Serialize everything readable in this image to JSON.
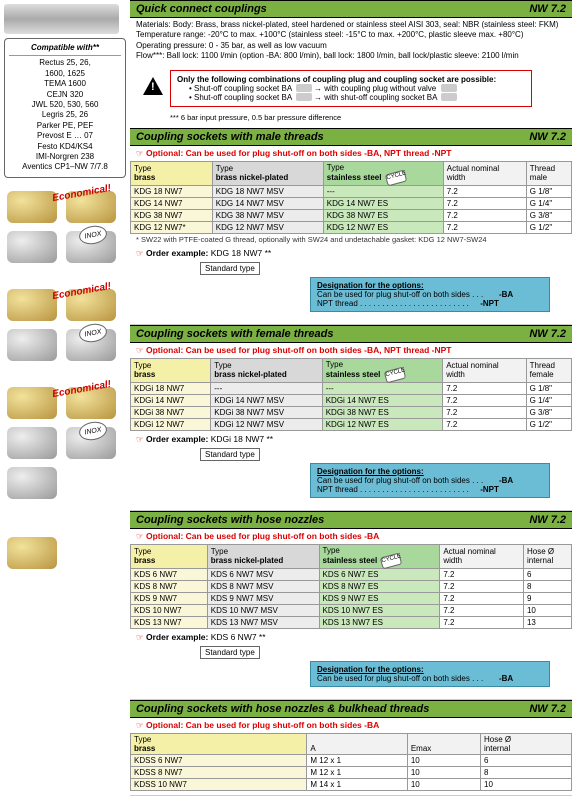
{
  "compat": {
    "title": "Compatible with**",
    "lines": [
      "Rectus 25, 26,",
      "1600, 1625",
      "TEMA 1600",
      "CEJN 320",
      "JWL 520, 530, 560",
      "Legris 25, 26",
      "Parker PE, PEF",
      "Prevost E … 07",
      "Festo KD4/KS4",
      "IMI-Norgren 238",
      "Aventics CP1–NW 7/7.8"
    ]
  },
  "header": {
    "title": "Quick connect couplings",
    "code": "NW 7.2"
  },
  "specs": {
    "l1": "Materials: Body: Brass, brass nickel-plated, steel hardened or stainless steel AISI 303, seal: NBR (stainless steel: FKM)",
    "l2": "Temperature range: -20°C to max. +100°C (stainless steel: -15°C to max. +200°C, plastic sleeve max. +80°C)",
    "l3": "Operating pressure: 0 - 35 bar, as well as low vacuum",
    "l4": "Flow***: Ball lock: 1100 l/min (option -BA: 800 l/min), ball lock: 1800 l/min, ball lock/plastic sleeve: 2100 l/min"
  },
  "warn": {
    "title": "Only the following combinations of coupling plug and coupling socket are possible:",
    "r1a": "• Shut-off coupling socket BA",
    "r1b": "with coupling plug without valve",
    "r2a": "• Shut-off coupling socket BA",
    "r2b": "with shut-off coupling socket BA"
  },
  "foot1": "*** 6 bar input pressure, 0.5 bar pressure difference",
  "labels": {
    "economical": "Economical!",
    "inox": "INOX",
    "cycle": "CYCLE",
    "stdtype": "Standard type",
    "order": "Order example:",
    "desig_title": "Designation for the options:",
    "desig_ba": "Can be used for plug shut-off on both sides . . .",
    "desig_npt": "NPT thread  . . . . . . . . . . . . . . . . . . . . . . . . .",
    "ba": "-BA",
    "npt": "-NPT",
    "type": "Type",
    "brass": "brass",
    "bnp": "brass nickel-plated",
    "ss": "stainless steel",
    "anw": "Actual nominal",
    "anw2": "width",
    "thread": "Thread",
    "male": "male",
    "female": "female",
    "hose": "Hose Ø",
    "internal": "internal",
    "A": "A",
    "Emax": "Emax"
  },
  "sec1": {
    "title": "Coupling sockets with male threads",
    "code": "NW 7.2",
    "optional": "Optional: Can be used for plug shut-off on both sides -BA, NPT thread -NPT",
    "rows": [
      [
        "KDG 18 NW7",
        "KDG 18 NW7 MSV",
        "---",
        "7.2",
        "G 1/8\""
      ],
      [
        "KDG 14 NW7",
        "KDG 14 NW7 MSV",
        "KDG 14 NW7 ES",
        "7.2",
        "G 1/4\""
      ],
      [
        "KDG 38 NW7",
        "KDG 38 NW7 MSV",
        "KDG 38 NW7 ES",
        "7.2",
        "G 3/8\""
      ],
      [
        "KDG 12 NW7*",
        "KDG 12 NW7 MSV",
        "KDG 12 NW7 ES",
        "7.2",
        "G 1/2\""
      ]
    ],
    "note": "* SW22 with PTFE-coated G thread, optionally with SW24 and undetachable gasket: KDG 12 NW7-SW24",
    "order": "KDG 18 NW7  **"
  },
  "sec2": {
    "title": "Coupling sockets with female threads",
    "code": "NW 7.2",
    "optional": "Optional: Can be used for plug shut-off on both sides -BA, NPT thread -NPT",
    "rows": [
      [
        "KDGi 18 NW7",
        "---",
        "---",
        "7.2",
        "G 1/8\""
      ],
      [
        "KDGi 14 NW7",
        "KDGi 14 NW7 MSV",
        "KDGi 14 NW7 ES",
        "7.2",
        "G 1/4\""
      ],
      [
        "KDGi 38 NW7",
        "KDGi 38 NW7 MSV",
        "KDGi 38 NW7 ES",
        "7.2",
        "G 3/8\""
      ],
      [
        "KDGi 12 NW7",
        "KDGi 12 NW7 MSV",
        "KDGi 12 NW7 ES",
        "7.2",
        "G 1/2\""
      ]
    ],
    "order": "KDGi 18 NW7  **"
  },
  "sec3": {
    "title": "Coupling sockets with hose nozzles",
    "code": "NW 7.2",
    "optional": "Optional: Can be used for plug shut-off on both sides -BA",
    "rows": [
      [
        "KDS 6 NW7",
        "KDS 6 NW7 MSV",
        "KDS 6 NW7 ES",
        "7.2",
        "6"
      ],
      [
        "KDS 8 NW7",
        "KDS 8 NW7 MSV",
        "KDS 8 NW7 ES",
        "7.2",
        "8"
      ],
      [
        "KDS 9 NW7",
        "KDS 9 NW7 MSV",
        "KDS 9 NW7 ES",
        "7.2",
        "9"
      ],
      [
        "KDS 10 NW7",
        "KDS 10 NW7 MSV",
        "KDS 10 NW7 ES",
        "7.2",
        "10"
      ],
      [
        "KDS 13 NW7",
        "KDS 13 NW7 MSV",
        "KDS 13 NW7 ES",
        "7.2",
        "13"
      ]
    ],
    "order": "KDS 6 NW7  **"
  },
  "sec4": {
    "title": "Coupling sockets with hose nozzles & bulkhead threads",
    "code": "NW 7.2",
    "optional": "Optional: Can be used for plug shut-off on both sides -BA",
    "rows": [
      [
        "KDSS 6 NW7",
        "M 12 x 1",
        "10",
        "6"
      ],
      [
        "KDSS 8 NW7",
        "M 12 x 1",
        "10",
        "8"
      ],
      [
        "KDSS 10 NW7",
        "M 14 x 1",
        "10",
        "10"
      ]
    ]
  }
}
